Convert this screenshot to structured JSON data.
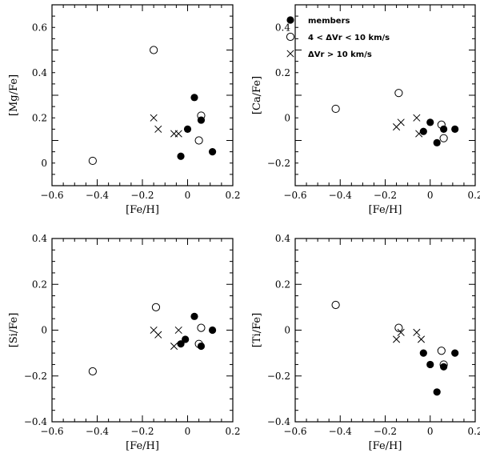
{
  "legend": {
    "members": "members",
    "mid": "4 < ΔVr < 10 km/s",
    "high": "ΔVr > 10 km/s"
  },
  "chart_data": [
    {
      "type": "scatter",
      "ylabel": "[Mg/Fe]",
      "xlabel": "[Fe/H]",
      "xlim": [
        -0.6,
        0.2
      ],
      "ylim": [
        -0.1,
        0.7
      ],
      "xticks": [
        -0.6,
        -0.4,
        -0.2,
        0,
        0.2
      ],
      "xtick_labels": [
        "−0.6",
        "−0.4",
        "−0.2",
        "0",
        "0.2"
      ],
      "yticks": [
        0,
        0.2,
        0.4,
        0.6
      ],
      "ytick_labels": [
        "0",
        "0.2",
        "0.4",
        "0.6"
      ],
      "series": [
        {
          "name": "members",
          "marker": "filled-circle",
          "points": [
            [
              0.03,
              0.29
            ],
            [
              0.0,
              0.15
            ],
            [
              0.06,
              0.19
            ],
            [
              -0.03,
              0.03
            ],
            [
              0.11,
              0.05
            ]
          ]
        },
        {
          "name": "4 < ΔVr < 10 km/s",
          "marker": "open-circle",
          "points": [
            [
              -0.42,
              0.01
            ],
            [
              -0.15,
              0.5
            ],
            [
              0.06,
              0.21
            ],
            [
              0.05,
              0.1
            ]
          ]
        },
        {
          "name": "ΔVr > 10 km/s",
          "marker": "cross",
          "points": [
            [
              -0.15,
              0.2
            ],
            [
              -0.13,
              0.15
            ],
            [
              -0.06,
              0.13
            ],
            [
              -0.04,
              0.13
            ]
          ]
        }
      ]
    },
    {
      "type": "scatter",
      "ylabel": "[Ca/Fe]",
      "xlabel": "[Fe/H]",
      "xlim": [
        -0.6,
        0.2
      ],
      "ylim": [
        -0.3,
        0.5
      ],
      "xticks": [
        -0.6,
        -0.4,
        -0.2,
        0,
        0.2
      ],
      "xtick_labels": [
        "−0.6",
        "−0.4",
        "−0.2",
        "0",
        "0.2"
      ],
      "yticks": [
        -0.2,
        0,
        0.2,
        0.4
      ],
      "ytick_labels": [
        "−0.2",
        "0",
        "0.2",
        "0.4"
      ],
      "legend_position": "top-right",
      "series": [
        {
          "name": "members",
          "marker": "filled-circle",
          "points": [
            [
              -0.03,
              -0.06
            ],
            [
              0.0,
              -0.02
            ],
            [
              0.03,
              -0.11
            ],
            [
              0.06,
              -0.05
            ],
            [
              0.11,
              -0.05
            ]
          ]
        },
        {
          "name": "4 < ΔVr < 10 km/s",
          "marker": "open-circle",
          "points": [
            [
              -0.42,
              0.04
            ],
            [
              -0.14,
              0.11
            ],
            [
              0.05,
              -0.03
            ],
            [
              0.06,
              -0.09
            ]
          ]
        },
        {
          "name": "ΔVr > 10 km/s",
          "marker": "cross",
          "points": [
            [
              -0.15,
              -0.04
            ],
            [
              -0.13,
              -0.02
            ],
            [
              -0.06,
              0.0
            ],
            [
              -0.05,
              -0.07
            ]
          ]
        }
      ]
    },
    {
      "type": "scatter",
      "ylabel": "[Si/Fe]",
      "xlabel": "[Fe/H]",
      "xlim": [
        -0.6,
        0.2
      ],
      "ylim": [
        -0.4,
        0.4
      ],
      "xticks": [
        -0.6,
        -0.4,
        -0.2,
        0,
        0.2
      ],
      "xtick_labels": [
        "−0.6",
        "−0.4",
        "−0.2",
        "0",
        "0.2"
      ],
      "yticks": [
        -0.4,
        -0.2,
        0,
        0.2,
        0.4
      ],
      "ytick_labels": [
        "−0.4",
        "−0.2",
        "0",
        "0.2",
        "0.4"
      ],
      "series": [
        {
          "name": "members",
          "marker": "filled-circle",
          "points": [
            [
              0.03,
              0.06
            ],
            [
              -0.01,
              -0.04
            ],
            [
              -0.03,
              -0.06
            ],
            [
              0.06,
              -0.07
            ],
            [
              0.11,
              0.0
            ]
          ]
        },
        {
          "name": "4 < ΔVr < 10 km/s",
          "marker": "open-circle",
          "points": [
            [
              -0.42,
              -0.18
            ],
            [
              -0.14,
              0.1
            ],
            [
              0.06,
              0.01
            ],
            [
              0.05,
              -0.06
            ]
          ]
        },
        {
          "name": "ΔVr > 10 km/s",
          "marker": "cross",
          "points": [
            [
              -0.15,
              0.0
            ],
            [
              -0.13,
              -0.02
            ],
            [
              -0.04,
              0.0
            ],
            [
              -0.06,
              -0.07
            ]
          ]
        }
      ]
    },
    {
      "type": "scatter",
      "ylabel": "[Ti/Fe]",
      "xlabel": "[Fe/H]",
      "xlim": [
        -0.6,
        0.2
      ],
      "ylim": [
        -0.4,
        0.4
      ],
      "xticks": [
        -0.6,
        -0.4,
        -0.2,
        0,
        0.2
      ],
      "xtick_labels": [
        "−0.6",
        "−0.4",
        "−0.2",
        "0",
        "0.2"
      ],
      "yticks": [
        -0.4,
        -0.2,
        0,
        0.2,
        0.4
      ],
      "ytick_labels": [
        "−0.4",
        "−0.2",
        "0",
        "0.2",
        "0.4"
      ],
      "series": [
        {
          "name": "members",
          "marker": "filled-circle",
          "points": [
            [
              -0.03,
              -0.1
            ],
            [
              0.0,
              -0.15
            ],
            [
              0.06,
              -0.16
            ],
            [
              0.11,
              -0.1
            ],
            [
              0.03,
              -0.27
            ]
          ]
        },
        {
          "name": "4 < ΔVr < 10 km/s",
          "marker": "open-circle",
          "points": [
            [
              -0.42,
              0.11
            ],
            [
              -0.14,
              0.01
            ],
            [
              0.05,
              -0.09
            ],
            [
              0.06,
              -0.15
            ]
          ]
        },
        {
          "name": "ΔVr > 10 km/s",
          "marker": "cross",
          "points": [
            [
              -0.15,
              -0.04
            ],
            [
              -0.13,
              -0.01
            ],
            [
              -0.06,
              -0.01
            ],
            [
              -0.04,
              -0.04
            ]
          ]
        }
      ]
    }
  ]
}
